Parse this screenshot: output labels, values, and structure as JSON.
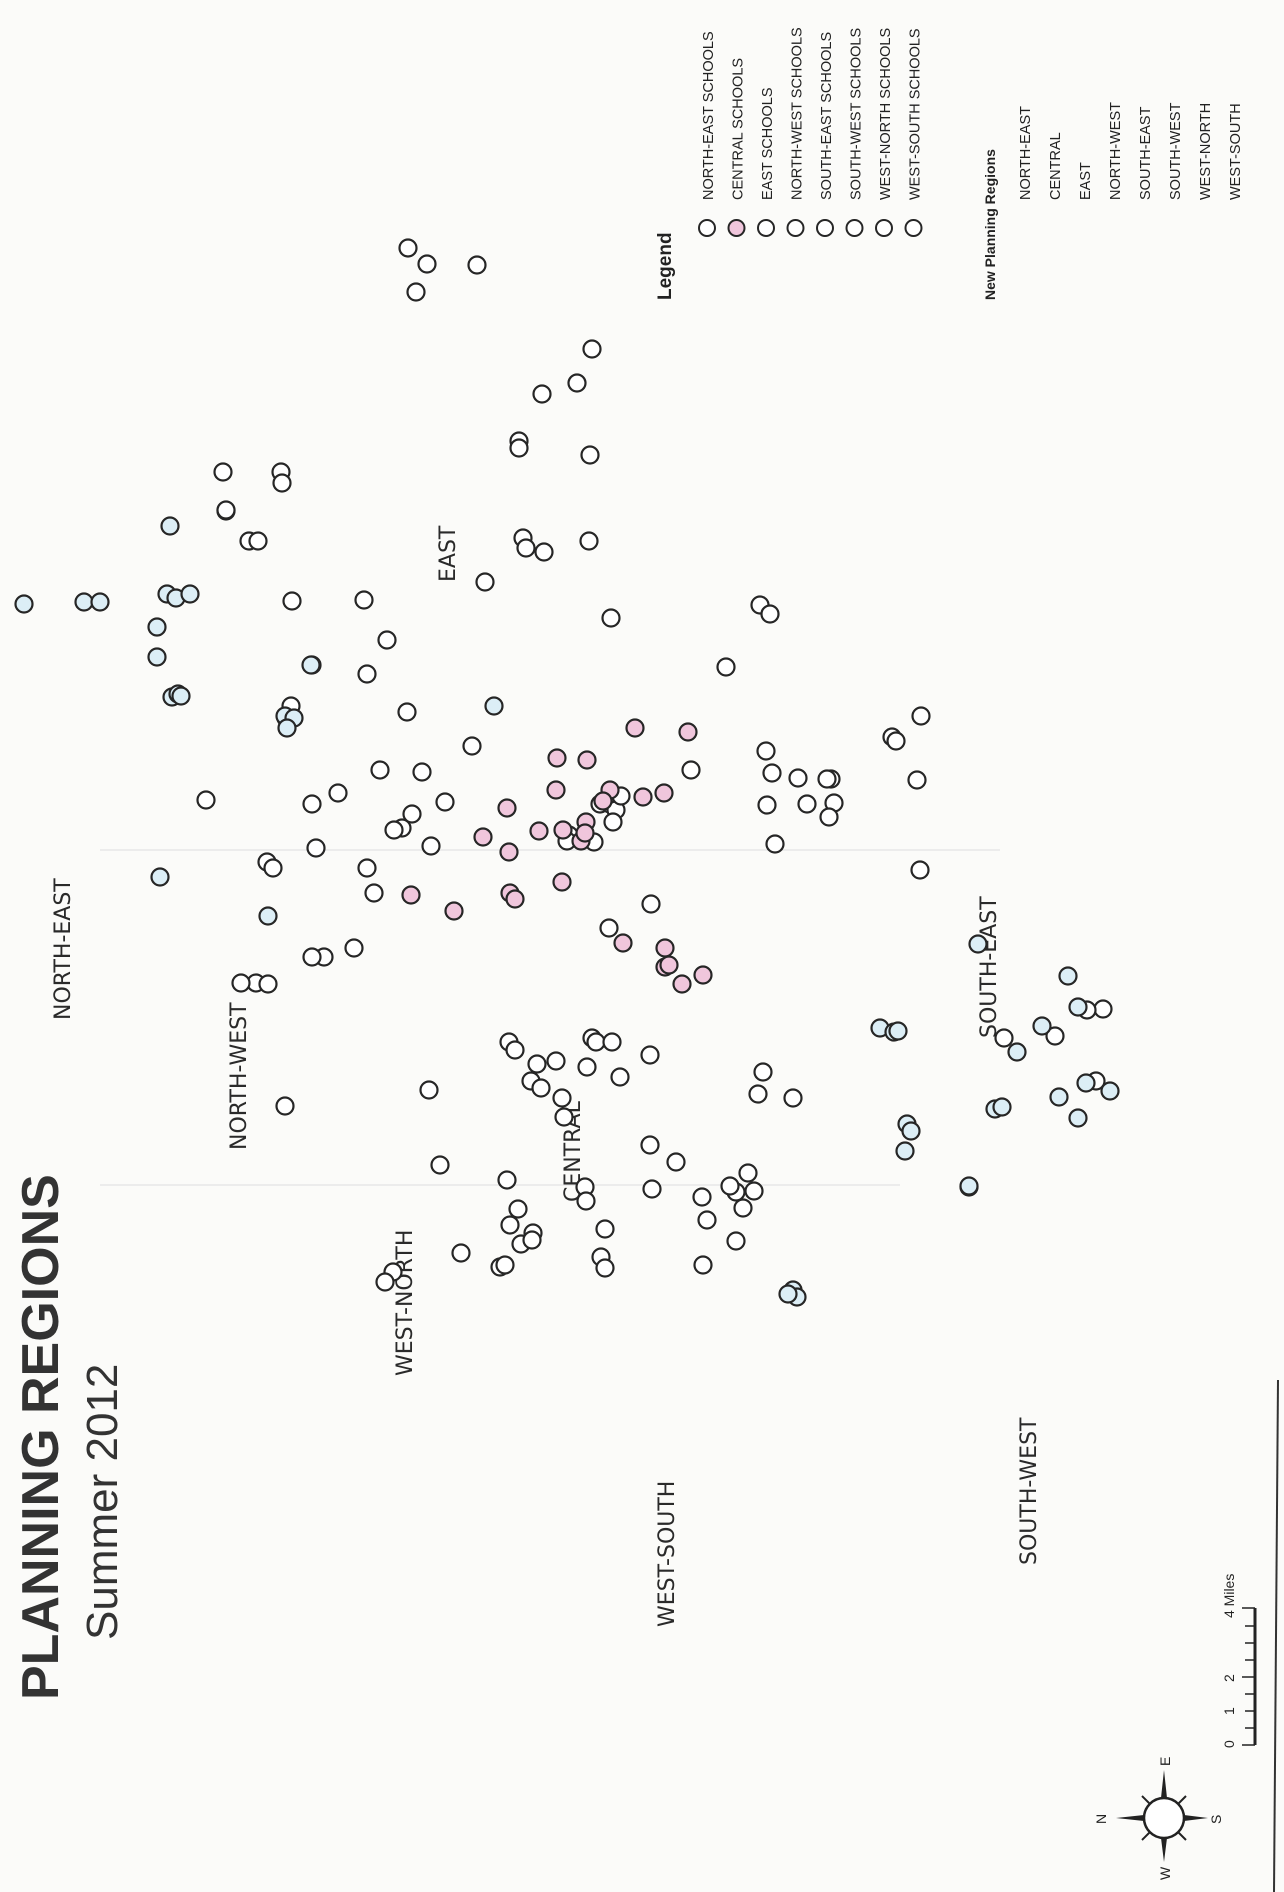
{
  "title": "PLANNING REGIONS",
  "subtitle": "Summer 2012",
  "colors": {
    "CENTRAL": "#f0c6dc",
    "NORTH_EAST": "#ffffff",
    "light_blue": "#dceef6",
    "white": "#ffffff",
    "outline": "#262626"
  },
  "legend": {
    "title": "Legend",
    "school_items": [
      {
        "label": "NORTH-EAST SCHOOLS",
        "fill": "#ffffff"
      },
      {
        "label": "CENTRAL SCHOOLS",
        "fill": "#f0c6dc"
      },
      {
        "label": "EAST SCHOOLS",
        "fill": "#ffffff"
      },
      {
        "label": "NORTH-WEST SCHOOLS",
        "fill": "#ffffff"
      },
      {
        "label": "SOUTH-EAST SCHOOLS",
        "fill": "#ffffff"
      },
      {
        "label": "SOUTH-WEST SCHOOLS",
        "fill": "#ffffff"
      },
      {
        "label": "WEST-NORTH SCHOOLS",
        "fill": "#ffffff"
      },
      {
        "label": "WEST-SOUTH SCHOOLS",
        "fill": "#ffffff"
      }
    ],
    "regions_title": "New Planning Regions",
    "region_items": [
      "NORTH-EAST",
      "CENTRAL",
      "EAST",
      "NORTH-WEST",
      "SOUTH-EAST",
      "SOUTH-WEST",
      "WEST-NORTH",
      "WEST-SOUTH"
    ]
  },
  "region_labels": [
    "NORTH-EAST",
    "NORTH-WEST",
    "EAST",
    "CENTRAL",
    "WEST-NORTH",
    "SOUTH-EAST",
    "WEST-SOUTH",
    "SOUTH-WEST"
  ],
  "scale_bar": {
    "labels": [
      "0",
      "1",
      "2",
      "4 Miles"
    ]
  },
  "compass": {
    "labels": [
      "N",
      "E",
      "S",
      "W"
    ]
  },
  "schools": {
    "northeast_light": 16,
    "central_pink": 30,
    "southwest_light": 22,
    "other_white": 160
  }
}
